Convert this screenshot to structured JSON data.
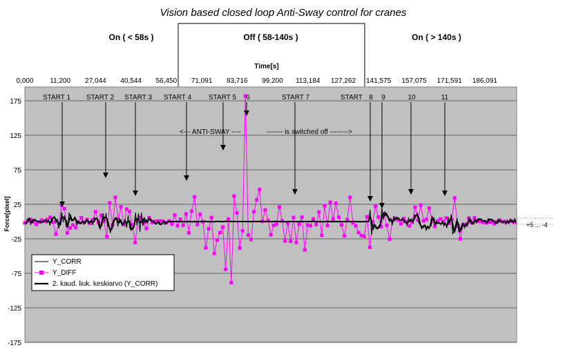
{
  "chart_data": {
    "type": "line",
    "title": "Vision based closed loop Anti-Sway control for cranes",
    "phases": [
      "On ( < 58s )",
      "Off  ( 58-140s )",
      "On ( > 140s )"
    ],
    "xlabel": "Time[s]",
    "ylabel": "Force[pixel]",
    "x_ticks": [
      "0,000",
      "11,200",
      "27,044",
      "40,544",
      "56,450",
      "71,091",
      "83,716",
      "99,200",
      "113,184",
      "127,262",
      "141,575",
      "157,075",
      "171,591",
      "186,091"
    ],
    "y_ticks": [
      175,
      125,
      75,
      25,
      -25,
      -75,
      -125,
      -175
    ],
    "ylim": [
      -175,
      195
    ],
    "xlim": [
      0,
      200
    ],
    "grid": true,
    "legend": {
      "position": "bottom-left",
      "entries": [
        "Y_CORR",
        "Y_DIFF",
        "2. kaud. liuk. keskiarvo (Y_CORR)"
      ]
    },
    "series": [
      {
        "name": "Y_CORR",
        "color": "#000000"
      },
      {
        "name": "Y_DIFF",
        "color": "#ff00ff"
      },
      {
        "name": "2. kaud. liuk. keskiarvo (Y_CORR)",
        "color": "#000000"
      }
    ],
    "annotations": {
      "starts": [
        "START 1",
        "START 2",
        "START 3",
        "START 4",
        "START 5",
        "6",
        "START 7",
        "START",
        "8",
        "9",
        "10",
        "11"
      ],
      "anti_sway": "<--- ANTI-SWAY ----",
      "switched_off": "------- is switched off -------->",
      "range_note": "+5 ... -4"
    },
    "colors": {
      "plot_bg": "#c0c0c0",
      "diff": "#ff00ff",
      "corr": "#000000"
    }
  }
}
